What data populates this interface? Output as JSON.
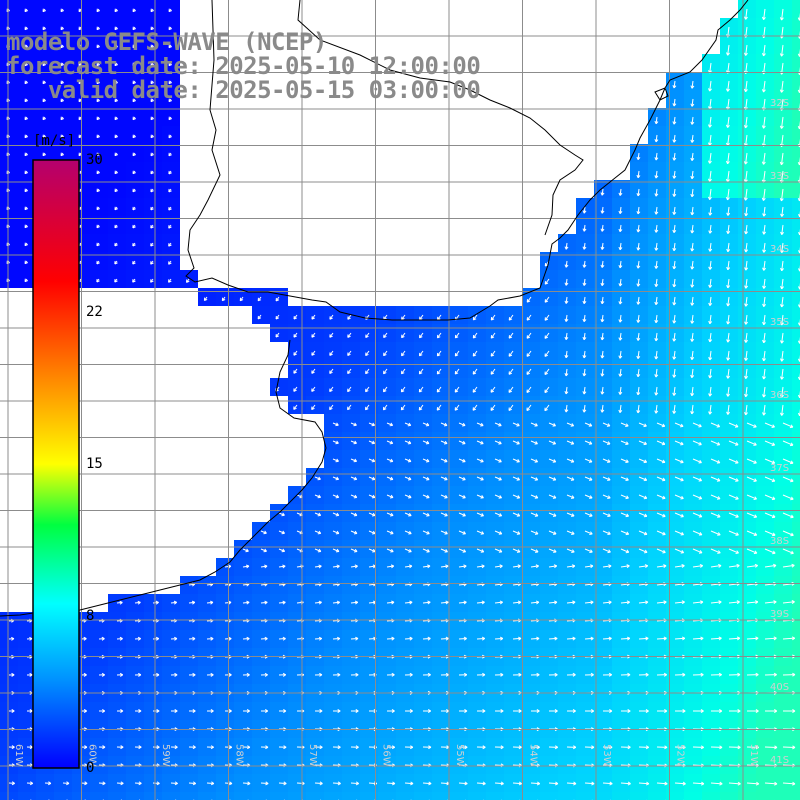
{
  "title": {
    "line1": "modelo GEFS-WAVE (NCEP)",
    "line2": "forecast date: 2025-05-10 12:00:00",
    "line3": "   valid date: 2025-05-15 03:00:00"
  },
  "colorbar": {
    "unit": "[m/s]",
    "ticks": [
      "30",
      "22",
      "15",
      "8",
      "0"
    ],
    "min": 0,
    "max": 30,
    "tick_values": [
      30,
      22,
      15,
      8,
      0
    ],
    "colors": [
      "#0000ff",
      "#00b4ff",
      "#00ffff",
      "#00ff00",
      "#ffff00",
      "#ff8000",
      "#ff0000",
      "#b4006e"
    ]
  },
  "grid": {
    "lat_labels": [
      "32S",
      "33S",
      "34S",
      "35S",
      "36S",
      "37S",
      "38S",
      "39S",
      "40S",
      "41S"
    ],
    "lon_labels": [
      "61W",
      "60W",
      "59W",
      "58W",
      "57W",
      "56W",
      "55W",
      "54W",
      "53W",
      "52W",
      "51W"
    ]
  },
  "field": {
    "variable": "wind speed and direction",
    "units": "m/s",
    "land_color": "#ffffff",
    "coast_color": "#000000",
    "arrow_color": "#ffffff",
    "grid_color": "#8c8c8c"
  }
}
